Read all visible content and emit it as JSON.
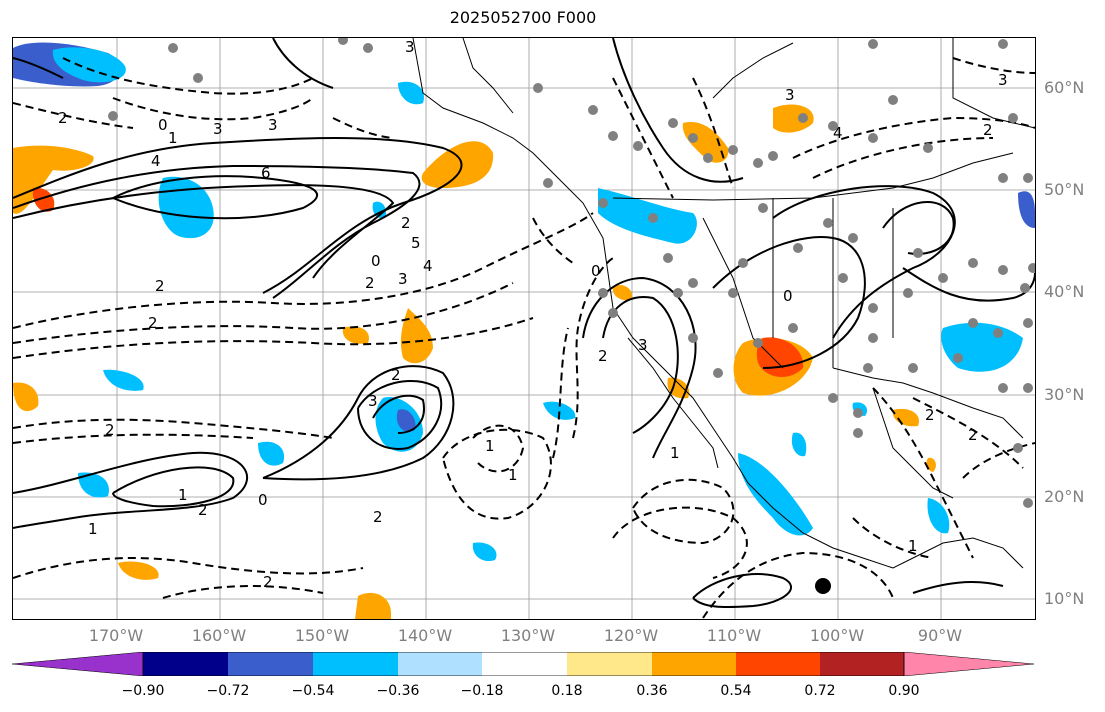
{
  "title": "2025052700 F000",
  "lat_labels": [
    "60°N",
    "50°N",
    "40°N",
    "30°N",
    "20°N",
    "10°N"
  ],
  "lon_labels": [
    "170°W",
    "160°W",
    "150°W",
    "140°W",
    "130°W",
    "120°W",
    "110°W",
    "100°W",
    "90°W"
  ],
  "colorbar": {
    "colors": [
      "#9932cc",
      "#00008b",
      "#3a5fcd",
      "#00bfff",
      "#b0e0ff",
      "#ffffff",
      "#ffe88a",
      "#ffa500",
      "#ff4500",
      "#b22222",
      "#ff86aa"
    ],
    "tick_labels": [
      "−0.90",
      "−0.72",
      "−0.54",
      "−0.36",
      "−0.18",
      "0.18",
      "0.36",
      "0.54",
      "0.72",
      "0.90"
    ]
  },
  "contour_labels": [
    "3",
    "2",
    "0",
    "1",
    "4",
    "6",
    "3",
    "3",
    "2",
    "5",
    "4",
    "0",
    "2",
    "3",
    "2",
    "2",
    "2",
    "3",
    "2",
    "1",
    "2",
    "0",
    "1",
    "2",
    "2",
    "1",
    "1",
    "0",
    "2",
    "0",
    "1",
    "4",
    "3",
    "3",
    "2",
    "2",
    "1",
    "2",
    "3"
  ],
  "colors": {
    "positive": "#ffa500",
    "strong_positive": "#ff4500",
    "negative": "#00bfff",
    "strong_negative": "#3a5fcd",
    "station": "#808080"
  }
}
